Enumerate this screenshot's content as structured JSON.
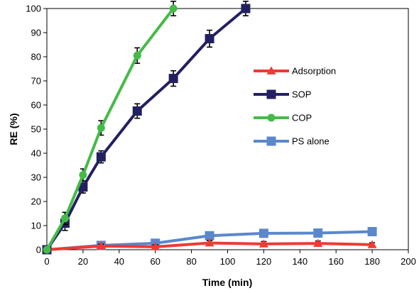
{
  "chart_data": {
    "type": "line",
    "title": "",
    "xlabel": "Time (min)",
    "ylabel": "RE (%)",
    "xlim": [
      0,
      200
    ],
    "ylim": [
      0,
      100
    ],
    "xticks": [
      0,
      20,
      40,
      60,
      80,
      100,
      120,
      140,
      160,
      180,
      200
    ],
    "yticks": [
      0,
      10,
      20,
      30,
      40,
      50,
      60,
      70,
      80,
      90,
      100
    ],
    "grid": false,
    "legend_position": "center-right",
    "series": [
      {
        "name": "Adsorption",
        "color": "#ee3a32",
        "marker": "triangle",
        "x": [
          0,
          30,
          60,
          90,
          120,
          150,
          180
        ],
        "y": [
          0,
          1.5,
          1.2,
          2.8,
          2.4,
          2.6,
          2.1
        ],
        "err": [
          0,
          0.8,
          0.8,
          1.0,
          1.0,
          1.0,
          0.8
        ]
      },
      {
        "name": "SOP",
        "color": "#232060",
        "marker": "square",
        "x": [
          0,
          10,
          20,
          30,
          50,
          70,
          90,
          110
        ],
        "y": [
          0,
          11,
          26,
          38.5,
          57.5,
          71,
          87.5,
          100
        ],
        "err": [
          0,
          3,
          2.5,
          2.5,
          3,
          3.2,
          3.5,
          3
        ]
      },
      {
        "name": "COP",
        "color": "#44bb47",
        "marker": "circle",
        "x": [
          0,
          10,
          20,
          30,
          50,
          70
        ],
        "y": [
          0,
          13,
          31,
          50.5,
          80.5,
          100
        ],
        "err": [
          0,
          2.5,
          2.5,
          3,
          3.2,
          3
        ]
      },
      {
        "name": "PS alone",
        "color": "#5b87cc",
        "marker": "square",
        "x": [
          0,
          30,
          60,
          90,
          120,
          150,
          180
        ],
        "y": [
          0,
          1.8,
          2.7,
          5.8,
          6.8,
          6.9,
          7.5
        ],
        "err": [
          0,
          0,
          0,
          0,
          0,
          0,
          0
        ]
      }
    ]
  }
}
